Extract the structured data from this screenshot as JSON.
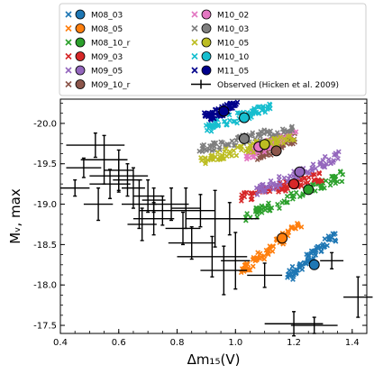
{
  "chart_data": {
    "type": "scatter",
    "xlabel": "Δm₁₅(V)",
    "ylabel": "Mᵥ, max",
    "xlim": [
      0.4,
      1.45
    ],
    "ylim": [
      -17.4,
      -20.3
    ],
    "y_inverted": true,
    "x_ticks": [
      "0.4",
      "0.6",
      "0.8",
      "1.0",
      "1.2",
      "1.4"
    ],
    "y_ticks": [
      "-20.0",
      "-19.5",
      "-19.0",
      "-18.5",
      "-18.0",
      "-17.5"
    ],
    "legend_position": "top (outside, above plot)",
    "series": [
      {
        "name": "M08_03",
        "color": "#1f77b4",
        "cluster_x": [
          1.18,
          1.34
        ],
        "cluster_y": [
          -18.1,
          -18.6
        ],
        "marker": {
          "x": 1.27,
          "y": -18.25
        }
      },
      {
        "name": "M08_05",
        "color": "#ff7f0e",
        "cluster_x": [
          1.02,
          1.22
        ],
        "cluster_y": [
          -18.15,
          -18.75
        ],
        "marker": {
          "x": 1.16,
          "y": -18.58
        }
      },
      {
        "name": "M08_10_r",
        "color": "#2ca02c",
        "cluster_x": [
          1.04,
          1.37
        ],
        "cluster_y": [
          -18.85,
          -19.35
        ],
        "marker": {
          "x": 1.25,
          "y": -19.18
        }
      },
      {
        "name": "M09_03",
        "color": "#d62728",
        "cluster_x": [
          1.02,
          1.3
        ],
        "cluster_y": [
          -19.08,
          -19.35
        ],
        "marker": {
          "x": 1.2,
          "y": -19.25
        }
      },
      {
        "name": "M09_05",
        "color": "#9467bd",
        "cluster_x": [
          1.07,
          1.36
        ],
        "cluster_y": [
          -19.15,
          -19.6
        ],
        "marker": {
          "x": 1.22,
          "y": -19.4
        }
      },
      {
        "name": "M09_10_r",
        "color": "#8c564b",
        "cluster_x": [
          1.08,
          1.2
        ],
        "cluster_y": [
          -19.6,
          -19.82
        ],
        "marker": {
          "x": 1.14,
          "y": -19.66
        }
      },
      {
        "name": "M10_02",
        "color": "#e377c2",
        "cluster_x": [
          1.04,
          1.2
        ],
        "cluster_y": [
          -19.6,
          -19.9
        ],
        "marker": {
          "x": 1.08,
          "y": -19.71
        }
      },
      {
        "name": "M10_03",
        "color": "#7f7f7f",
        "cluster_x": [
          0.88,
          1.2
        ],
        "cluster_y": [
          -19.68,
          -19.95
        ],
        "marker": {
          "x": 1.03,
          "y": -19.81
        }
      },
      {
        "name": "M10_05",
        "color": "#bcbd22",
        "cluster_x": [
          0.88,
          1.2
        ],
        "cluster_y": [
          -19.55,
          -19.82
        ],
        "marker": {
          "x": 1.1,
          "y": -19.74
        }
      },
      {
        "name": "M10_10",
        "color": "#17becf",
        "cluster_x": [
          0.9,
          1.12
        ],
        "cluster_y": [
          -19.95,
          -20.2
        ],
        "marker": {
          "x": 1.03,
          "y": -20.07
        }
      },
      {
        "name": "M11_05",
        "color": "#00008b",
        "cluster_x": [
          0.9,
          1.0
        ],
        "cluster_y": [
          -20.08,
          -20.22
        ],
        "marker": {
          "x": 0.96,
          "y": -20.15
        }
      },
      {
        "name": "Observed (Hicken et al. 2009)",
        "color": "#000000",
        "points": [
          {
            "x": 0.52,
            "y": -19.73,
            "xerr": 0.1,
            "yerr": 0.15
          },
          {
            "x": 0.55,
            "y": -19.55,
            "xerr": 0.08,
            "yerr": 0.3
          },
          {
            "x": 0.48,
            "y": -19.45,
            "xerr": 0.06,
            "yerr": 0.12
          },
          {
            "x": 0.6,
            "y": -19.42,
            "xerr": 0.05,
            "yerr": 0.25
          },
          {
            "x": 0.6,
            "y": -19.35,
            "xerr": 0.1,
            "yerr": 0.2
          },
          {
            "x": 0.63,
            "y": -19.3,
            "xerr": 0.05,
            "yerr": 0.2
          },
          {
            "x": 0.57,
            "y": -19.25,
            "xerr": 0.07,
            "yerr": 0.18
          },
          {
            "x": 0.65,
            "y": -19.2,
            "xerr": 0.04,
            "yerr": 0.25
          },
          {
            "x": 0.45,
            "y": -19.2,
            "xerr": 0.05,
            "yerr": 0.1
          },
          {
            "x": 0.7,
            "y": -19.1,
            "xerr": 0.05,
            "yerr": 0.2
          },
          {
            "x": 0.72,
            "y": -19.05,
            "xerr": 0.04,
            "yerr": 0.15
          },
          {
            "x": 0.67,
            "y": -19.0,
            "xerr": 0.06,
            "yerr": 0.3
          },
          {
            "x": 0.53,
            "y": -19.0,
            "xerr": 0.05,
            "yerr": 0.2
          },
          {
            "x": 0.78,
            "y": -19.0,
            "xerr": 0.06,
            "yerr": 0.2
          },
          {
            "x": 0.75,
            "y": -18.92,
            "xerr": 0.08,
            "yerr": 0.18
          },
          {
            "x": 0.83,
            "y": -18.95,
            "xerr": 0.05,
            "yerr": 0.25
          },
          {
            "x": 0.88,
            "y": -18.92,
            "xerr": 0.05,
            "yerr": 0.2
          },
          {
            "x": 0.93,
            "y": -18.82,
            "xerr": 0.1,
            "yerr": 0.35
          },
          {
            "x": 0.98,
            "y": -18.82,
            "xerr": 0.1,
            "yerr": 0.2
          },
          {
            "x": 0.82,
            "y": -18.7,
            "xerr": 0.06,
            "yerr": 0.2
          },
          {
            "x": 0.68,
            "y": -18.75,
            "xerr": 0.05,
            "yerr": 0.2
          },
          {
            "x": 0.85,
            "y": -18.52,
            "xerr": 0.08,
            "yerr": 0.2
          },
          {
            "x": 0.92,
            "y": -18.35,
            "xerr": 0.12,
            "yerr": 0.25
          },
          {
            "x": 1.0,
            "y": -18.3,
            "xerr": 0.05,
            "yerr": 0.35
          },
          {
            "x": 0.96,
            "y": -18.18,
            "xerr": 0.08,
            "yerr": 0.3
          },
          {
            "x": 1.1,
            "y": -18.12,
            "xerr": 0.06,
            "yerr": 0.15
          },
          {
            "x": 1.2,
            "y": -17.52,
            "xerr": 0.1,
            "yerr": 0.15
          },
          {
            "x": 1.27,
            "y": -17.5,
            "xerr": 0.08,
            "yerr": 0.1
          },
          {
            "x": 1.42,
            "y": -17.85,
            "xerr": 0.05,
            "yerr": 0.25
          },
          {
            "x": 1.33,
            "y": -18.3,
            "xerr": 0.04,
            "yerr": 0.1
          },
          {
            "x": 0.72,
            "y": -18.82,
            "xerr": 0.07,
            "yerr": 0.2
          }
        ]
      }
    ]
  }
}
